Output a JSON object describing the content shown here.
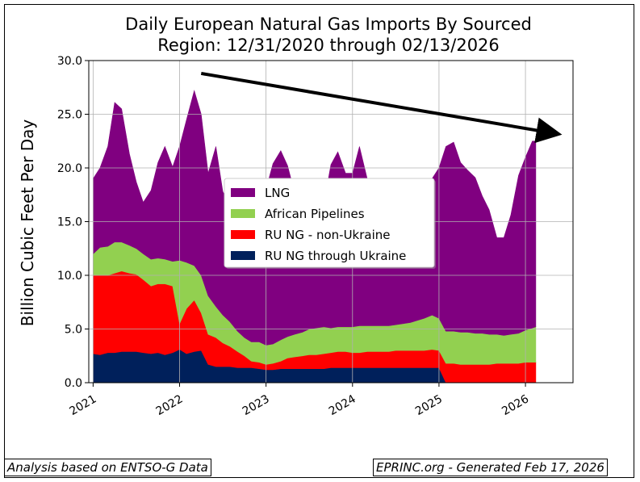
{
  "chart_data": {
    "type": "area",
    "stacked": true,
    "title_line1": "Daily European Natural Gas Imports By Sourced",
    "title_line2": "Region: 12/31/2020 through 02/13/2026",
    "ylabel": "Billion Cubic Feet Per Day",
    "xlabel": "",
    "ylim": [
      0,
      30
    ],
    "xlim": [
      2020.95,
      2026.55
    ],
    "yticks": [
      "0.0",
      "5.0",
      "10.0",
      "15.0",
      "20.0",
      "25.0",
      "30.0"
    ],
    "yticks_values": [
      0,
      5,
      10,
      15,
      20,
      25,
      30
    ],
    "xticks": [
      "2021",
      "2022",
      "2023",
      "2024",
      "2025",
      "2026"
    ],
    "xticks_values": [
      2021,
      2022,
      2023,
      2024,
      2025,
      2026
    ],
    "grid": true,
    "legend_position": "center",
    "x": [
      2021.0,
      2021.08,
      2021.17,
      2021.25,
      2021.33,
      2021.42,
      2021.5,
      2021.58,
      2021.67,
      2021.75,
      2021.83,
      2021.92,
      2022.0,
      2022.08,
      2022.17,
      2022.25,
      2022.33,
      2022.42,
      2022.5,
      2022.58,
      2022.67,
      2022.75,
      2022.83,
      2022.92,
      2023.0,
      2023.08,
      2023.17,
      2023.25,
      2023.33,
      2023.42,
      2023.5,
      2023.58,
      2023.67,
      2023.75,
      2023.83,
      2023.92,
      2024.0,
      2024.08,
      2024.17,
      2024.25,
      2024.33,
      2024.42,
      2024.5,
      2024.58,
      2024.67,
      2024.75,
      2024.83,
      2024.92,
      2025.0,
      2025.08,
      2025.17,
      2025.25,
      2025.33,
      2025.42,
      2025.5,
      2025.58,
      2025.67,
      2025.75,
      2025.83,
      2025.92,
      2026.0,
      2026.08,
      2026.12
    ],
    "series": [
      {
        "name": "RU NG through Ukraine",
        "color": "#00205b",
        "values": [
          2.7,
          2.6,
          2.8,
          2.8,
          2.9,
          2.9,
          2.9,
          2.8,
          2.7,
          2.8,
          2.6,
          2.8,
          3.1,
          2.7,
          2.9,
          3.0,
          1.7,
          1.5,
          1.5,
          1.5,
          1.4,
          1.4,
          1.4,
          1.3,
          1.2,
          1.2,
          1.3,
          1.3,
          1.3,
          1.3,
          1.3,
          1.3,
          1.3,
          1.4,
          1.4,
          1.4,
          1.4,
          1.4,
          1.4,
          1.4,
          1.4,
          1.4,
          1.4,
          1.4,
          1.4,
          1.4,
          1.4,
          1.4,
          1.4,
          0,
          0,
          0,
          0,
          0,
          0,
          0,
          0,
          0,
          0,
          0,
          0,
          0,
          0
        ]
      },
      {
        "name": "RU NG - non-Ukraine",
        "color": "#ff0000",
        "values": [
          7.3,
          7.4,
          7.2,
          7.4,
          7.5,
          7.3,
          7.2,
          6.8,
          6.3,
          6.4,
          6.6,
          6.2,
          2.4,
          4.2,
          4.8,
          3.5,
          2.8,
          2.7,
          2.2,
          1.9,
          1.5,
          1.1,
          0.6,
          0.6,
          0.5,
          0.6,
          0.7,
          1.0,
          1.1,
          1.2,
          1.3,
          1.3,
          1.4,
          1.4,
          1.5,
          1.5,
          1.4,
          1.4,
          1.5,
          1.5,
          1.5,
          1.5,
          1.6,
          1.6,
          1.6,
          1.6,
          1.6,
          1.7,
          1.6,
          1.8,
          1.8,
          1.7,
          1.7,
          1.7,
          1.7,
          1.7,
          1.8,
          1.8,
          1.8,
          1.8,
          1.9,
          1.9,
          1.9
        ]
      },
      {
        "name": "African Pipelines",
        "color": "#92d050",
        "values": [
          2.0,
          2.6,
          2.7,
          2.9,
          2.7,
          2.6,
          2.4,
          2.4,
          2.5,
          2.4,
          2.3,
          2.3,
          5.9,
          4.3,
          3.2,
          3.5,
          3.6,
          2.9,
          2.6,
          2.3,
          1.9,
          1.7,
          1.8,
          1.9,
          1.8,
          1.8,
          2.0,
          2.0,
          2.1,
          2.2,
          2.4,
          2.5,
          2.5,
          2.3,
          2.3,
          2.3,
          2.4,
          2.5,
          2.4,
          2.4,
          2.4,
          2.4,
          2.4,
          2.5,
          2.6,
          2.8,
          3.0,
          3.2,
          3.0,
          3.0,
          3.0,
          3.0,
          3.0,
          2.9,
          2.9,
          2.8,
          2.7,
          2.6,
          2.7,
          2.8,
          3.0,
          3.2,
          3.3
        ]
      },
      {
        "name": "LNG",
        "color": "#800080",
        "values": [
          7.0,
          7.4,
          9.3,
          13.0,
          12.4,
          8.5,
          6.2,
          4.8,
          6.4,
          8.9,
          10.5,
          8.8,
          10.6,
          13.3,
          16.3,
          15.0,
          11.4,
          14.9,
          11.5,
          10.8,
          11.9,
          13.3,
          12.7,
          13.1,
          14.5,
          16.8,
          17.6,
          15.9,
          13.2,
          12.8,
          12.0,
          10.6,
          11.5,
          15.2,
          16.3,
          14.3,
          14.3,
          16.7,
          13.7,
          10.2,
          9.0,
          9.6,
          9.4,
          8.2,
          8.8,
          8.8,
          11.0,
          12.7,
          14.0,
          17.2,
          17.6,
          15.8,
          15.1,
          14.5,
          12.8,
          11.6,
          9.0,
          9.1,
          11.1,
          14.7,
          16.1,
          17.4,
          17.3
        ]
      }
    ],
    "trend_arrow": {
      "x1": 2022.25,
      "y1": 28.8,
      "x2": 2026.35,
      "y2": 23.2
    }
  },
  "footer": {
    "left": "Analysis based on ENTSO-G Data",
    "right": "EPRINC.org - Generated Feb 17, 2026"
  }
}
